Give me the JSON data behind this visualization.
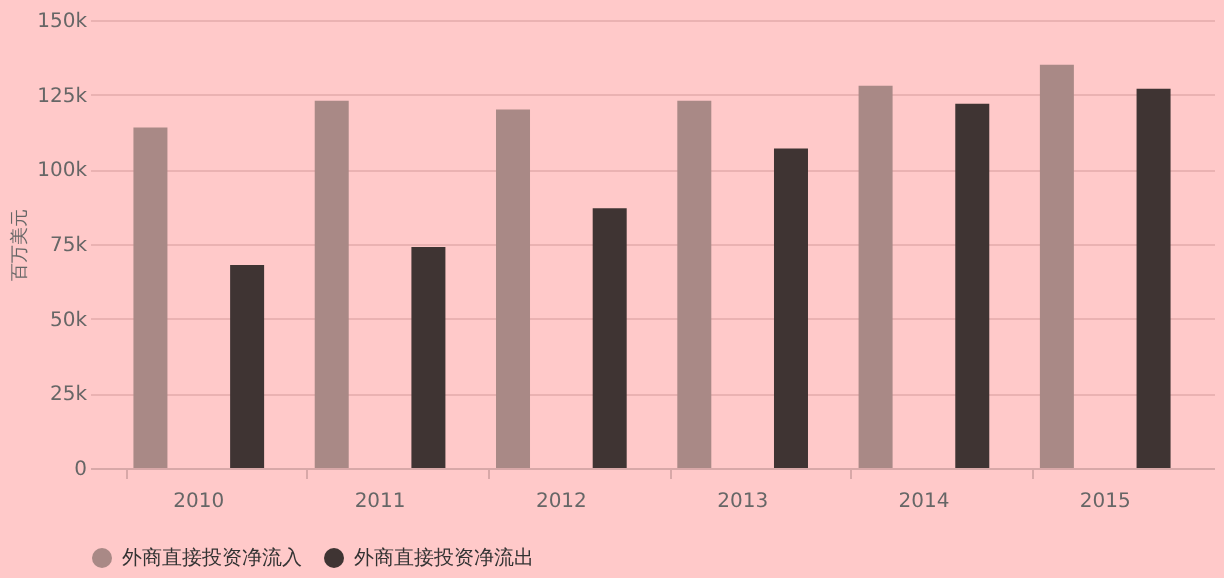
{
  "chart_data": {
    "type": "bar",
    "ylabel": "百万美元",
    "categories": [
      "2010",
      "2011",
      "2012",
      "2013",
      "2014",
      "2015"
    ],
    "series": [
      {
        "name": "外商直接投资净流入",
        "color": "#a98986",
        "values": [
          114000,
          123000,
          120000,
          123000,
          128000,
          135000
        ]
      },
      {
        "name": "外商直接投资净流出",
        "color": "#3f3433",
        "values": [
          68000,
          74000,
          87000,
          107000,
          122000,
          127000
        ]
      }
    ],
    "ylim": [
      0,
      150000
    ],
    "yticks": [
      {
        "value": 0,
        "label": "0"
      },
      {
        "value": 25000,
        "label": "25k"
      },
      {
        "value": 50000,
        "label": "50k"
      },
      {
        "value": 75000,
        "label": "75k"
      },
      {
        "value": 100000,
        "label": "100k"
      },
      {
        "value": 125000,
        "label": "125k"
      },
      {
        "value": 150000,
        "label": "150k"
      }
    ],
    "grid": "y",
    "legend": "bottom"
  }
}
